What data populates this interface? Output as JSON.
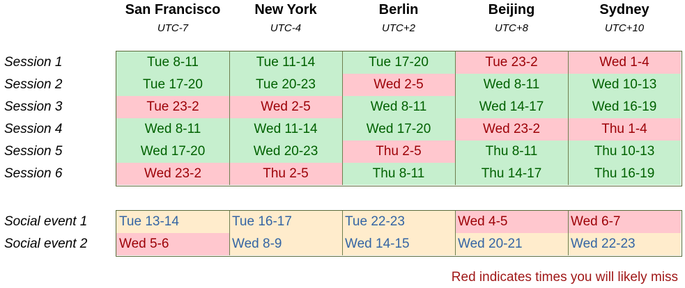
{
  "cities": [
    {
      "name": "San Francisco",
      "utc": "UTC-7"
    },
    {
      "name": "New York",
      "utc": "UTC-4"
    },
    {
      "name": "Berlin",
      "utc": "UTC+2"
    },
    {
      "name": "Beijing",
      "utc": "UTC+8"
    },
    {
      "name": "Sydney",
      "utc": "UTC+10"
    }
  ],
  "colors": {
    "ok_bg": "#c6efce",
    "ok_text": "#006100",
    "miss_bg": "#ffc7ce",
    "miss_text": "#9c0006",
    "social_bg": "#ffeccc",
    "social_text": "#3465a4",
    "note_text": "#a01818"
  },
  "sessions": [
    {
      "label": "Session 1",
      "cells": [
        {
          "text": "Tue  8-11",
          "miss": false
        },
        {
          "text": "Tue 11-14",
          "miss": false
        },
        {
          "text": "Tue 17-20",
          "miss": false
        },
        {
          "text": "Tue 23-2",
          "miss": true
        },
        {
          "text": "Wed 1-4",
          "miss": true
        }
      ]
    },
    {
      "label": "Session 2",
      "cells": [
        {
          "text": "Tue 17-20",
          "miss": false
        },
        {
          "text": "Tue 20-23",
          "miss": false
        },
        {
          "text": "Wed 2-5",
          "miss": true
        },
        {
          "text": "Wed 8-11",
          "miss": false
        },
        {
          "text": "Wed 10-13",
          "miss": false
        }
      ]
    },
    {
      "label": "Session 3",
      "cells": [
        {
          "text": "Tue 23-2",
          "miss": true
        },
        {
          "text": "Wed 2-5",
          "miss": true
        },
        {
          "text": "Wed 8-11",
          "miss": false
        },
        {
          "text": "Wed 14-17",
          "miss": false
        },
        {
          "text": "Wed 16-19",
          "miss": false
        }
      ]
    },
    {
      "label": "Session 4",
      "cells": [
        {
          "text": "Wed 8-11",
          "miss": false
        },
        {
          "text": "Wed 11-14",
          "miss": false
        },
        {
          "text": "Wed 17-20",
          "miss": false
        },
        {
          "text": "Wed 23-2",
          "miss": true
        },
        {
          "text": "Thu 1-4",
          "miss": true
        }
      ]
    },
    {
      "label": "Session 5",
      "cells": [
        {
          "text": "Wed 17-20",
          "miss": false
        },
        {
          "text": "Wed 20-23",
          "miss": false
        },
        {
          "text": "Thu 2-5",
          "miss": true
        },
        {
          "text": "Thu 8-11",
          "miss": false
        },
        {
          "text": "Thu 10-13",
          "miss": false
        }
      ]
    },
    {
      "label": "Session 6",
      "cells": [
        {
          "text": "Wed 23-2",
          "miss": true
        },
        {
          "text": "Thu 2-5",
          "miss": true
        },
        {
          "text": "Thu 8-11",
          "miss": false
        },
        {
          "text": "Thu 14-17",
          "miss": false
        },
        {
          "text": "Thu 16-19",
          "miss": false
        }
      ]
    }
  ],
  "social": [
    {
      "label": "Social event 1",
      "cells": [
        {
          "text": "Tue 13-14",
          "miss": false
        },
        {
          "text": "Tue 16-17",
          "miss": false
        },
        {
          "text": "Tue 22-23",
          "miss": false
        },
        {
          "text": "Wed 4-5",
          "miss": true
        },
        {
          "text": "Wed 6-7",
          "miss": true
        }
      ]
    },
    {
      "label": "Social event 2",
      "cells": [
        {
          "text": "Wed 5-6",
          "miss": true
        },
        {
          "text": "Wed 8-9",
          "miss": false
        },
        {
          "text": "Wed 14-15",
          "miss": false
        },
        {
          "text": "Wed 20-21",
          "miss": false
        },
        {
          "text": "Wed 22-23",
          "miss": false
        }
      ]
    }
  ],
  "footer_note": "Red indicates times you will likely miss"
}
